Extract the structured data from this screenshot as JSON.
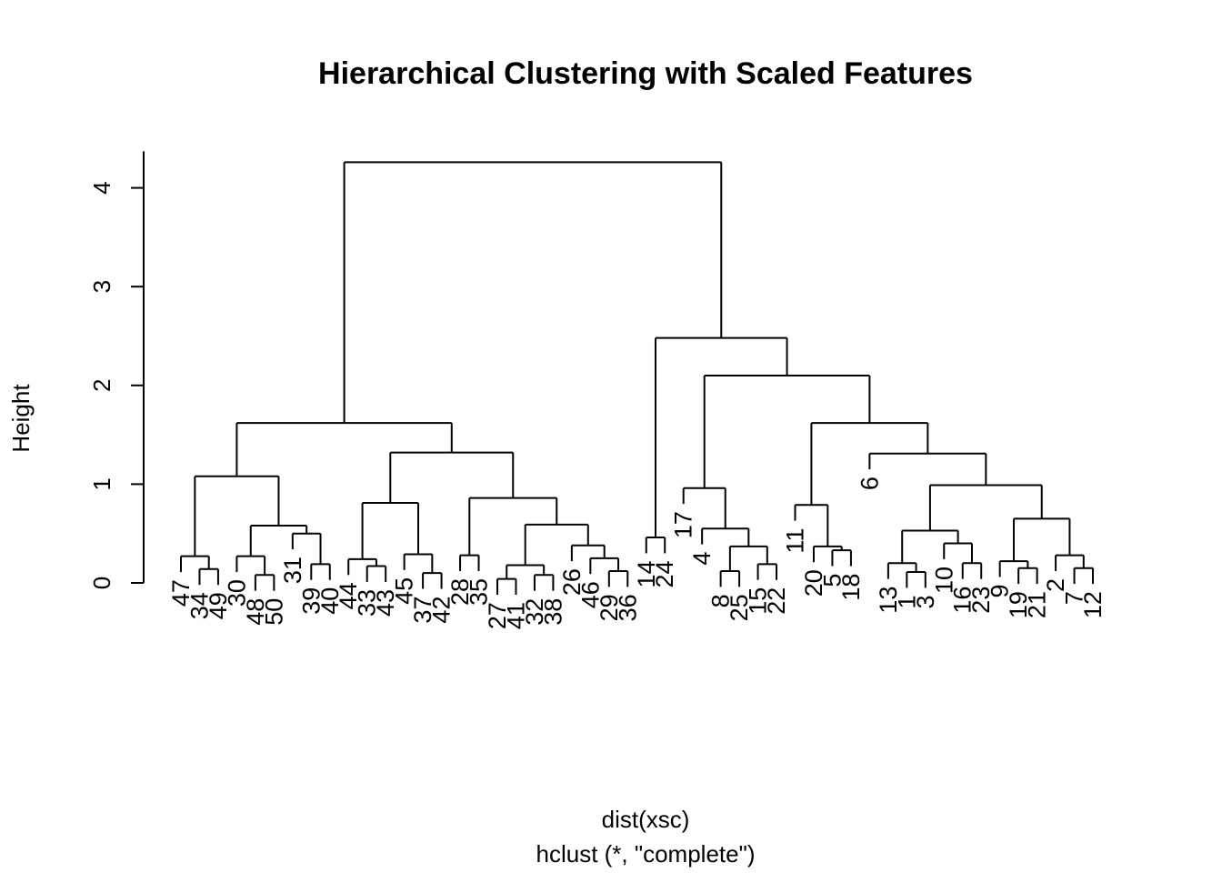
{
  "chart_data": {
    "type": "dendrogram",
    "title": "Hierarchical Clustering with Scaled Features",
    "ylabel": "Height",
    "xlabel": "dist(xsc)",
    "sublabel": "hclust (*, \"complete\")",
    "ylim": [
      0,
      4.5
    ],
    "yticks": [
      0,
      1,
      2,
      3,
      4
    ],
    "leaves": [
      "47",
      "34",
      "49",
      "30",
      "48",
      "50",
      "31",
      "39",
      "40",
      "44",
      "33",
      "43",
      "45",
      "37",
      "42",
      "28",
      "35",
      "27",
      "41",
      "32",
      "38",
      "26",
      "46",
      "29",
      "36",
      "14",
      "24",
      "17",
      "4",
      "8",
      "25",
      "15",
      "22",
      "11",
      "20",
      "5",
      "18",
      "6",
      "13",
      "1",
      "3",
      "10",
      "16",
      "23",
      "9",
      "19",
      "21",
      "2",
      "7",
      "12"
    ],
    "merges": [
      {
        "height": 0.27,
        "a": "L:47",
        "b": "c:34-49"
      },
      {
        "height": 0.14,
        "a": "L:34",
        "b": "L:49",
        "id": "34-49"
      },
      {
        "height": 0.27,
        "a": "L:30",
        "b": "c:48-50",
        "id": "30-48-50"
      },
      {
        "height": 0.08,
        "a": "L:48",
        "b": "L:50",
        "id": "48-50"
      },
      {
        "height": 0.19,
        "a": "L:39",
        "b": "L:40",
        "id": "39-40"
      },
      {
        "height": 0.5,
        "a": "L:31",
        "b": "c:39-40",
        "id": "31-39-40"
      },
      {
        "height": 0.58,
        "a": "c:30-48-50",
        "b": "c:31-39-40",
        "id": "A2"
      },
      {
        "height": 1.08,
        "a": "c:47-34-49",
        "b": "c:A2",
        "id": "A"
      },
      {
        "height": 0.17,
        "a": "L:33",
        "b": "L:43",
        "id": "33-43"
      },
      {
        "height": 0.24,
        "a": "L:44",
        "b": "c:33-43",
        "id": "44-33-43"
      },
      {
        "height": 0.1,
        "a": "L:37",
        "b": "L:42",
        "id": "37-42"
      },
      {
        "height": 0.29,
        "a": "L:45",
        "b": "c:37-42",
        "id": "45-37-42"
      },
      {
        "height": 0.81,
        "a": "c:44-33-43",
        "b": "c:45-37-42",
        "id": "B1"
      },
      {
        "height": 0.28,
        "a": "L:28",
        "b": "L:35",
        "id": "28-35"
      },
      {
        "height": 0.08,
        "a": "L:32",
        "b": "L:38",
        "id": "32-38"
      },
      {
        "height": 0.04,
        "a": "L:27",
        "b": "L:41",
        "id": "27-41"
      },
      {
        "height": 0.18,
        "a": "c:27-41",
        "b": "c:32-38",
        "id": "27-41-32-38"
      },
      {
        "height": 0.12,
        "a": "L:29",
        "b": "L:36",
        "id": "29-36"
      },
      {
        "height": 0.25,
        "a": "L:46",
        "b": "c:29-36",
        "id": "46-29-36"
      },
      {
        "height": 0.38,
        "a": "L:26",
        "b": "c:46-29-36",
        "id": "26-46-29-36"
      },
      {
        "height": 0.59,
        "a": "c:27-41-32-38",
        "b": "c:26-46-29-36",
        "id": "B2b"
      },
      {
        "height": 0.86,
        "a": "c:28-35",
        "b": "c:B2b",
        "id": "B2"
      },
      {
        "height": 1.32,
        "a": "c:B1",
        "b": "c:B2",
        "id": "B"
      },
      {
        "height": 1.62,
        "a": "c:A",
        "b": "c:B",
        "id": "left"
      },
      {
        "height": 0.46,
        "a": "L:14",
        "b": "L:24",
        "id": "14-24"
      },
      {
        "height": 0.12,
        "a": "L:8",
        "b": "L:25",
        "id": "8-25"
      },
      {
        "height": 0.19,
        "a": "L:15",
        "b": "L:22",
        "id": "15-22"
      },
      {
        "height": 0.37,
        "a": "c:8-25",
        "b": "c:15-22",
        "id": "8-25-15-22"
      },
      {
        "height": 0.55,
        "a": "L:4",
        "b": "c:8-25-15-22",
        "id": "4-grp"
      },
      {
        "height": 0.96,
        "a": "L:17",
        "b": "c:4-grp",
        "id": "17-grp"
      },
      {
        "height": 0.33,
        "a": "L:5",
        "b": "L:18",
        "id": "5-18"
      },
      {
        "height": 0.37,
        "a": "L:20",
        "b": "c:5-18",
        "id": "20-5-18"
      },
      {
        "height": 0.79,
        "a": "L:11",
        "b": "c:20-5-18",
        "id": "11-grp"
      },
      {
        "height": 0.11,
        "a": "L:1",
        "b": "L:3",
        "id": "1-3"
      },
      {
        "height": 0.2,
        "a": "L:13",
        "b": "c:1-3",
        "id": "13-1-3"
      },
      {
        "height": 0.2,
        "a": "L:16",
        "b": "L:23",
        "id": "16-23"
      },
      {
        "height": 0.4,
        "a": "L:10",
        "b": "c:16-23",
        "id": "10-16-23"
      },
      {
        "height": 0.53,
        "a": "c:13-1-3",
        "b": "c:10-16-23",
        "id": "D1"
      },
      {
        "height": 0.15,
        "a": "L:19",
        "b": "L:21",
        "id": "19-21"
      },
      {
        "height": 0.22,
        "a": "L:9",
        "b": "c:19-21",
        "id": "9-19-21"
      },
      {
        "height": 0.15,
        "a": "L:7",
        "b": "L:12",
        "id": "7-12"
      },
      {
        "height": 0.28,
        "a": "L:2",
        "b": "c:7-12",
        "id": "2-7-12"
      },
      {
        "height": 0.65,
        "a": "c:9-19-21",
        "b": "c:2-7-12",
        "id": "D2"
      },
      {
        "height": 0.99,
        "a": "c:D1",
        "b": "c:D2",
        "id": "D"
      },
      {
        "height": 1.31,
        "a": "L:6",
        "b": "c:D",
        "id": "6-grp"
      },
      {
        "height": 1.62,
        "a": "c:11-grp",
        "b": "c:6-grp",
        "id": "R2b"
      },
      {
        "height": 2.1,
        "a": "c:17-grp",
        "b": "c:R2b",
        "id": "R2"
      },
      {
        "height": 2.48,
        "a": "c:14-24",
        "b": "c:R2",
        "id": "right"
      },
      {
        "height": 4.26,
        "a": "c:left",
        "b": "c:right",
        "id": "root"
      }
    ]
  }
}
